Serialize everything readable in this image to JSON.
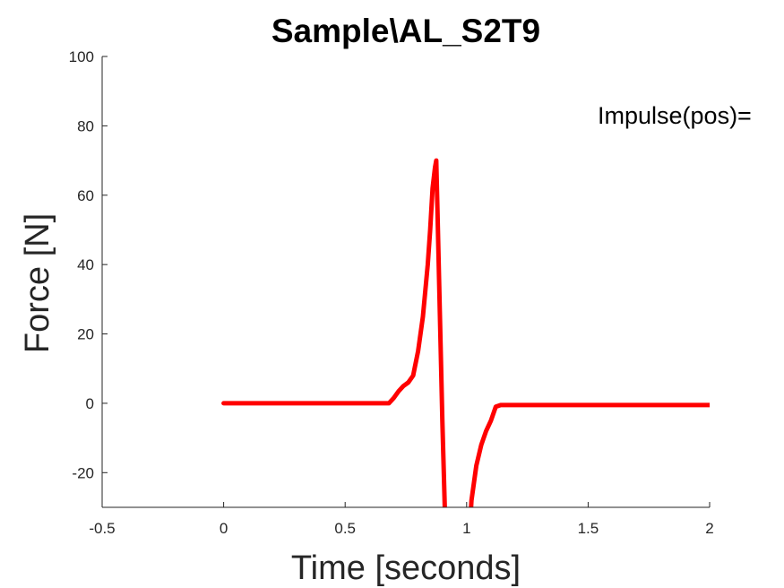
{
  "chart_data": {
    "type": "line",
    "title": "Sample\\AL_S2T9",
    "xlabel": "Time [seconds]",
    "ylabel": "Force [N]",
    "xlim": [
      -0.5,
      2
    ],
    "ylim": [
      -30,
      100
    ],
    "xticks": [
      "-0.5",
      "0",
      "0.5",
      "1",
      "1.5",
      "2"
    ],
    "yticks": [
      "-20",
      "0",
      "20",
      "40",
      "60",
      "80",
      "100"
    ],
    "grid": false,
    "annotation": "Impulse(pos)=",
    "series": [
      {
        "color": "#ff0000",
        "x": [
          0,
          0.1,
          0.2,
          0.3,
          0.4,
          0.5,
          0.6,
          0.68,
          0.7,
          0.72,
          0.74,
          0.76,
          0.78,
          0.8,
          0.82,
          0.84,
          0.85,
          0.86,
          0.87,
          0.875,
          0.88,
          0.89,
          0.9,
          0.91,
          0.92,
          1.01,
          1.02,
          1.04,
          1.06,
          1.08,
          1.1,
          1.12,
          1.14,
          1.2,
          1.3,
          1.5,
          1.7,
          2.0
        ],
        "y": [
          0,
          0,
          0,
          0,
          0,
          0,
          0,
          0,
          1.5,
          3.5,
          5,
          6,
          8,
          15,
          25,
          40,
          50,
          62,
          68,
          70,
          55,
          25,
          -5,
          -30,
          -40,
          -40,
          -28,
          -18,
          -12,
          -8,
          -5,
          -1,
          -0.5,
          -0.5,
          -0.5,
          -0.5,
          -0.5,
          -0.5
        ]
      }
    ]
  }
}
